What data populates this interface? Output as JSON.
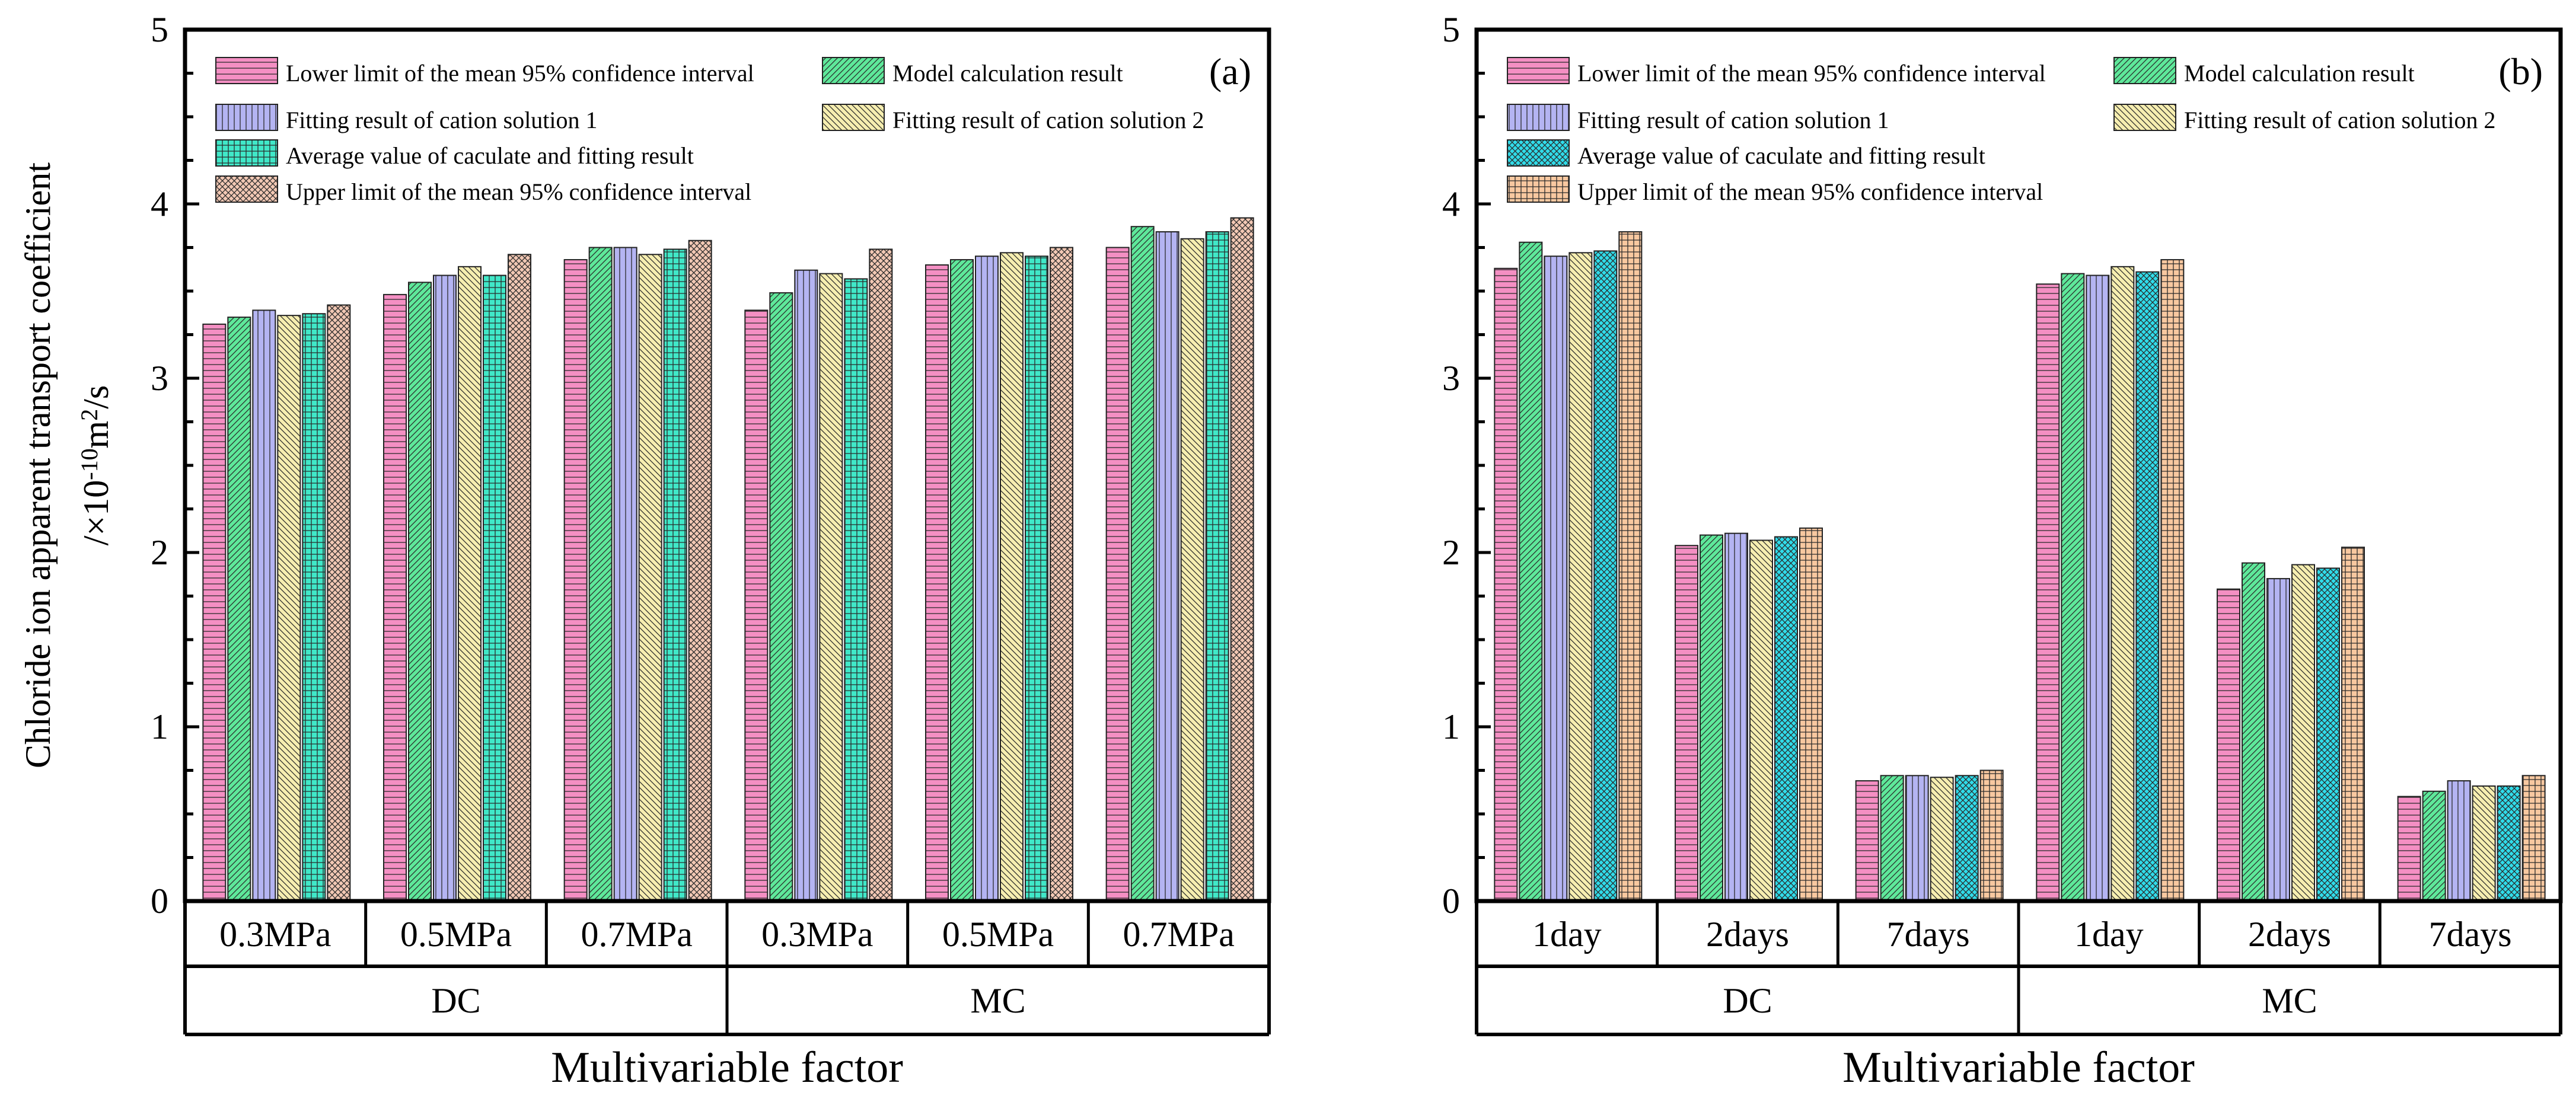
{
  "figure": {
    "ylabel_line1": "Chloride ion apparent  transport coefficient",
    "ylabel_prefix": "/×10",
    "ylabel_exp1": "-10",
    "ylabel_mid": "m",
    "ylabel_exp2": "2",
    "ylabel_suffix": "/s",
    "xlabel": "Multivariable factor"
  },
  "legend": [
    {
      "label": "Lower limit of the mean 95% confidence interval"
    },
    {
      "label": "Model calculation result"
    },
    {
      "label": "Fitting result of  cation solution 1"
    },
    {
      "label": "Fitting result of cation solution 2"
    },
    {
      "label": "Average value of caculate and fitting result"
    },
    {
      "label": "Upper limit of  the mean 95% confidence interval"
    }
  ],
  "chart_data": [
    {
      "type": "bar",
      "panel_label": "(a)",
      "ylim": [
        0,
        5
      ],
      "yticks": [
        "0",
        "1",
        "2",
        "3",
        "4",
        "5"
      ],
      "categories": [
        "0.3MPa",
        "0.5MPa",
        "0.7MPa",
        "0.3MPa",
        "0.5MPa",
        "0.7MPa"
      ],
      "groups": [
        "DC",
        "MC"
      ],
      "xlabel": "Multivariable factor",
      "ylabel": "Chloride ion apparent  transport coefficient /×10-10m2/s",
      "series": [
        {
          "name": "Lower limit of the mean 95% confidence interval",
          "color": "#f48fc3",
          "pattern": "hlines",
          "values": [
            3.31,
            3.48,
            3.68,
            3.39,
            3.65,
            3.75
          ]
        },
        {
          "name": "Model calculation result",
          "color": "#5ee89a",
          "pattern": "fdiag",
          "values": [
            3.35,
            3.55,
            3.75,
            3.49,
            3.68,
            3.87
          ]
        },
        {
          "name": "Fitting result of  cation solution 1",
          "color": "#b4b4f2",
          "pattern": "vlines",
          "values": [
            3.39,
            3.59,
            3.75,
            3.62,
            3.7,
            3.84
          ]
        },
        {
          "name": "Fitting result of cation solution 2",
          "color": "#f6eeb0",
          "pattern": "bdiag",
          "values": [
            3.36,
            3.64,
            3.71,
            3.6,
            3.72,
            3.8
          ]
        },
        {
          "name": "Average value of caculate and fitting result",
          "color": "#40e8c8",
          "pattern": "grid",
          "values": [
            3.37,
            3.59,
            3.74,
            3.57,
            3.7,
            3.84
          ]
        },
        {
          "name": "Upper limit of  the mean 95% confidence interval",
          "color": "#f2c8b4",
          "pattern": "xhatch",
          "values": [
            3.42,
            3.71,
            3.79,
            3.74,
            3.75,
            3.92
          ]
        }
      ]
    },
    {
      "type": "bar",
      "panel_label": "(b)",
      "ylim": [
        0,
        5
      ],
      "yticks": [
        "0",
        "1",
        "2",
        "3",
        "4",
        "5"
      ],
      "categories": [
        "1day",
        "2days",
        "7days",
        "1day",
        "2days",
        "7days"
      ],
      "groups": [
        "DC",
        "MC"
      ],
      "xlabel": "Multivariable factor",
      "ylabel": "Chloride ion apparent  transport coefficient /×10-10m2/s",
      "series": [
        {
          "name": "Lower limit of the mean 95% confidence interval",
          "color": "#f48fc3",
          "pattern": "hlines",
          "values": [
            3.63,
            2.04,
            0.69,
            3.54,
            1.79,
            0.6
          ]
        },
        {
          "name": "Model calculation result",
          "color": "#5ee89a",
          "pattern": "fdiag",
          "values": [
            3.78,
            2.1,
            0.72,
            3.6,
            1.94,
            0.63
          ]
        },
        {
          "name": "Fitting result of  cation solution 1",
          "color": "#b4b4f2",
          "pattern": "vlines",
          "values": [
            3.7,
            2.11,
            0.72,
            3.59,
            1.85,
            0.69
          ]
        },
        {
          "name": "Fitting result of cation solution 2",
          "color": "#f6eeb0",
          "pattern": "bdiag",
          "values": [
            3.72,
            2.07,
            0.71,
            3.64,
            1.93,
            0.66
          ]
        },
        {
          "name": "Average value of caculate and fitting result",
          "color": "#30dcea",
          "pattern": "xhatch",
          "values": [
            3.73,
            2.09,
            0.72,
            3.61,
            1.91,
            0.66
          ]
        },
        {
          "name": "Upper limit of  the mean 95% confidence interval",
          "color": "#f8c8a0",
          "pattern": "grid",
          "values": [
            3.84,
            2.14,
            0.75,
            3.68,
            2.03,
            0.72
          ]
        }
      ]
    }
  ]
}
